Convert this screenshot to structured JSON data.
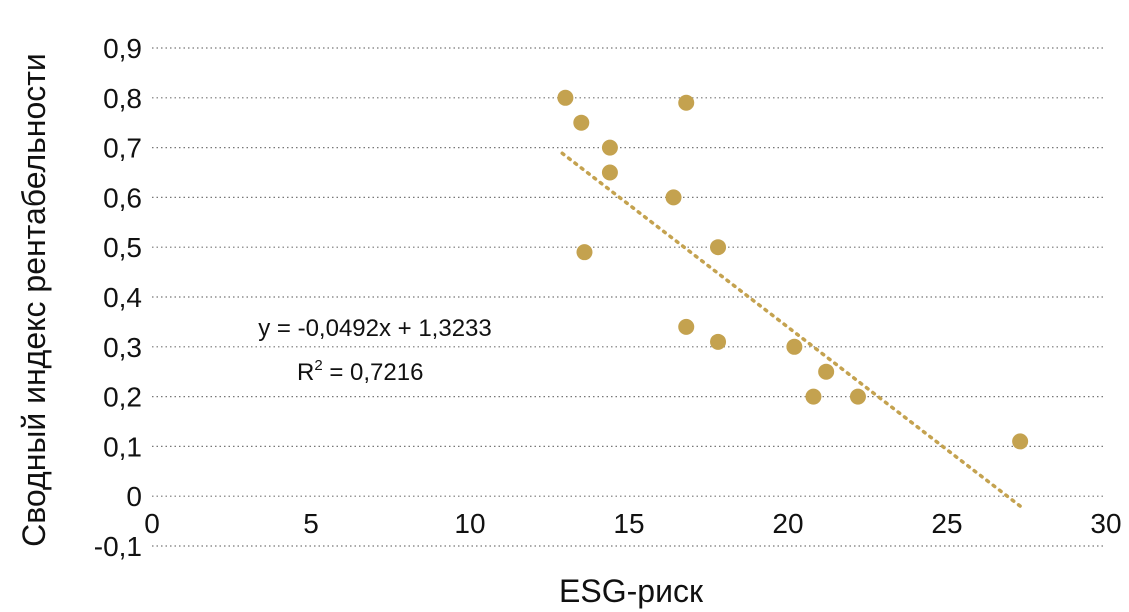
{
  "chart_data": {
    "type": "scatter",
    "xlabel": "ESG-риск",
    "ylabel": "Сводный индекс рентабельности",
    "xlim": [
      0,
      30
    ],
    "ylim": [
      -0.1,
      0.9
    ],
    "x_ticks": [
      "0",
      "5",
      "10",
      "15",
      "20",
      "25",
      "30"
    ],
    "y_ticks": [
      "0,9",
      "0,8",
      "0,7",
      "0,6",
      "0,5",
      "0,4",
      "0,3",
      "0,2",
      "0,1",
      "0",
      "-0,1"
    ],
    "grid": "horizontal dotted",
    "colors": {
      "points": "#c4a24f",
      "trendline": "#c4a24f",
      "grid": "#777777",
      "text": "#111111"
    },
    "points": [
      {
        "x": 13.0,
        "y": 0.8
      },
      {
        "x": 13.5,
        "y": 0.75
      },
      {
        "x": 14.4,
        "y": 0.7
      },
      {
        "x": 14.4,
        "y": 0.65
      },
      {
        "x": 13.6,
        "y": 0.49
      },
      {
        "x": 16.4,
        "y": 0.6
      },
      {
        "x": 16.8,
        "y": 0.79
      },
      {
        "x": 17.8,
        "y": 0.5
      },
      {
        "x": 16.8,
        "y": 0.34
      },
      {
        "x": 17.8,
        "y": 0.31
      },
      {
        "x": 20.2,
        "y": 0.3
      },
      {
        "x": 21.2,
        "y": 0.25
      },
      {
        "x": 20.8,
        "y": 0.2
      },
      {
        "x": 22.2,
        "y": 0.2
      },
      {
        "x": 27.3,
        "y": 0.11
      }
    ],
    "trendline": {
      "type": "linear",
      "slope": -0.0492,
      "intercept": 1.3233,
      "x_range": [
        12.9,
        27.3
      ],
      "equation_text": "y = -0,0492x + 1,3233",
      "r2_text": "R",
      "r2_sup": "2",
      "r2_value_text": " = 0,7216"
    }
  }
}
